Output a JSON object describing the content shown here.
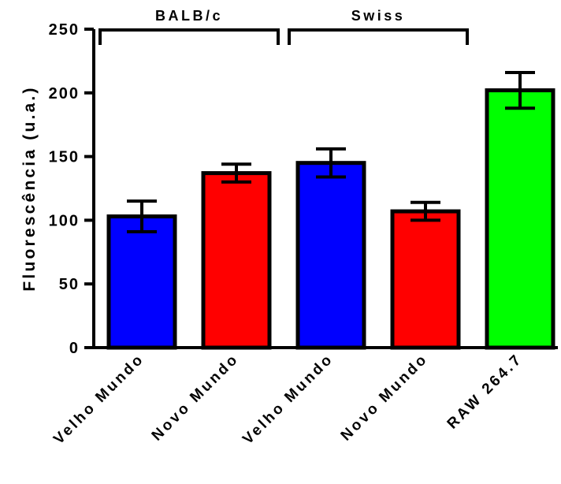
{
  "chart_data": {
    "type": "bar",
    "categories": [
      "Velho Mundo",
      "Novo Mundo",
      "Velho Mundo",
      "Novo Mundo",
      "RAW 264.7"
    ],
    "values": [
      103,
      137,
      145,
      107,
      202
    ],
    "error_low": [
      91,
      130,
      134,
      100,
      188
    ],
    "error_high": [
      115,
      144,
      156,
      114,
      216
    ],
    "ylabel": "Fluorescência (u.a.)",
    "xlabel": "",
    "ylim": [
      0,
      250
    ],
    "yticks": [
      "0",
      "50",
      "100",
      "150",
      "200",
      "250"
    ],
    "grid": false,
    "groups": [
      {
        "label": "BALB/c",
        "from": 0,
        "to": 1
      },
      {
        "label": "Swiss",
        "from": 2,
        "to": 3
      }
    ],
    "colors": [
      "#0000ff",
      "#ff0000",
      "#0000ff",
      "#ff0000",
      "#00ff00"
    ]
  }
}
